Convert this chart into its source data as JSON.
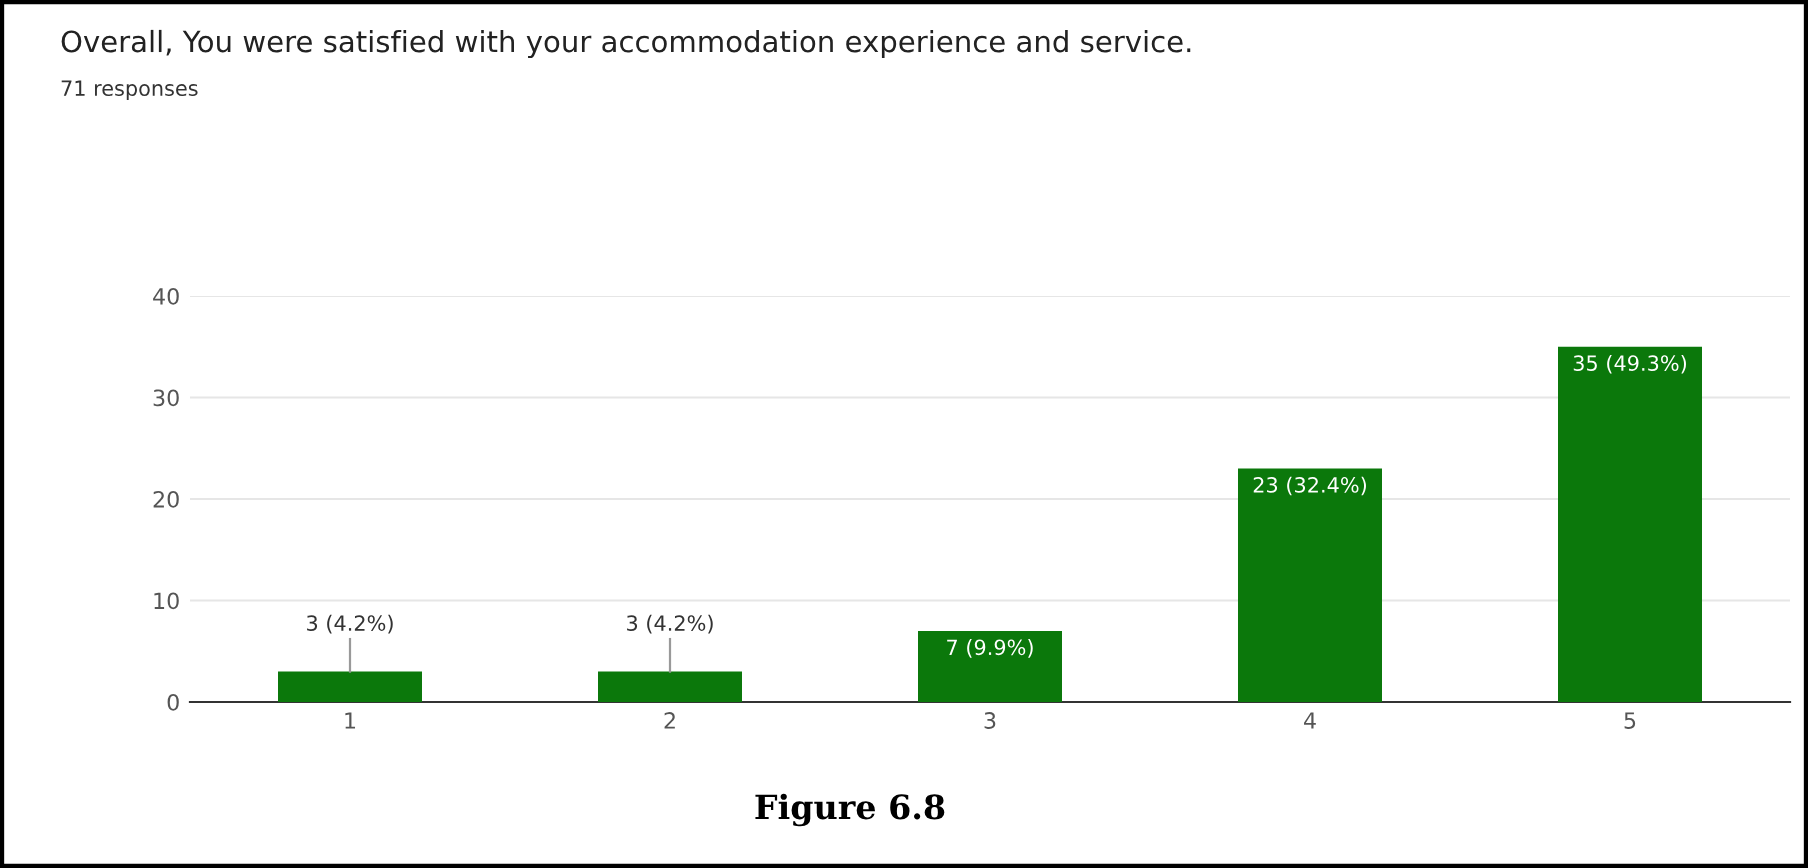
{
  "chart_data": {
    "type": "bar",
    "title": "Overall, You were satisfied with your accommodation experience and service.",
    "subtitle": "71 responses",
    "categories": [
      "1",
      "2",
      "3",
      "4",
      "5"
    ],
    "values": [
      3,
      3,
      7,
      23,
      35
    ],
    "value_labels": [
      "3 (4.2%)",
      "3 (4.2%)",
      "7 (9.9%)",
      "23 (32.4%)",
      "35 (49.3%)"
    ],
    "color": "#0b780b",
    "ylim": [
      0,
      40
    ],
    "yticks": [
      0,
      10,
      20,
      30,
      40
    ],
    "grid": "y",
    "legend": false,
    "annotations": [
      "Figure 6.8"
    ]
  }
}
